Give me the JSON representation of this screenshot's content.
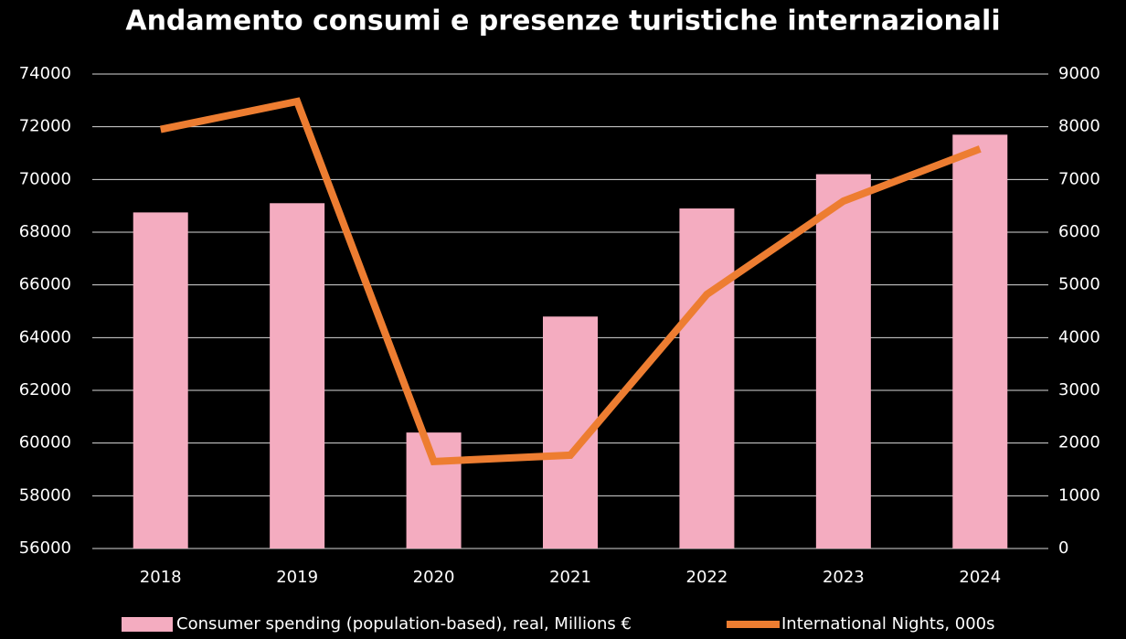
{
  "chart_data": {
    "type": "bar-line",
    "title": "Andamento consumi e presenze turistiche internazionali",
    "categories": [
      "2018",
      "2019",
      "2020",
      "2021",
      "2022",
      "2023",
      "2024"
    ],
    "series": [
      {
        "name": "Consumer spending (population-based), real, Millions €",
        "type": "bar",
        "color": "#f4acc0",
        "values": [
          68750,
          69100,
          60400,
          64800,
          68900,
          70200,
          71700
        ]
      },
      {
        "name": "International Nights, 000s",
        "type": "line",
        "axis": "y2",
        "color": "#ed7d31",
        "values": [
          7950,
          8480,
          1650,
          1770,
          4820,
          6590,
          7580
        ]
      }
    ],
    "ylim": [
      56000,
      74000
    ],
    "yticks": [
      56000,
      58000,
      60000,
      62000,
      64000,
      66000,
      68000,
      70000,
      72000,
      74000
    ],
    "y2lim": [
      0,
      9000
    ],
    "y2ticks": [
      0,
      1000,
      2000,
      3000,
      4000,
      5000,
      6000,
      7000,
      8000,
      9000
    ],
    "grid": true,
    "legend": "bottom"
  }
}
